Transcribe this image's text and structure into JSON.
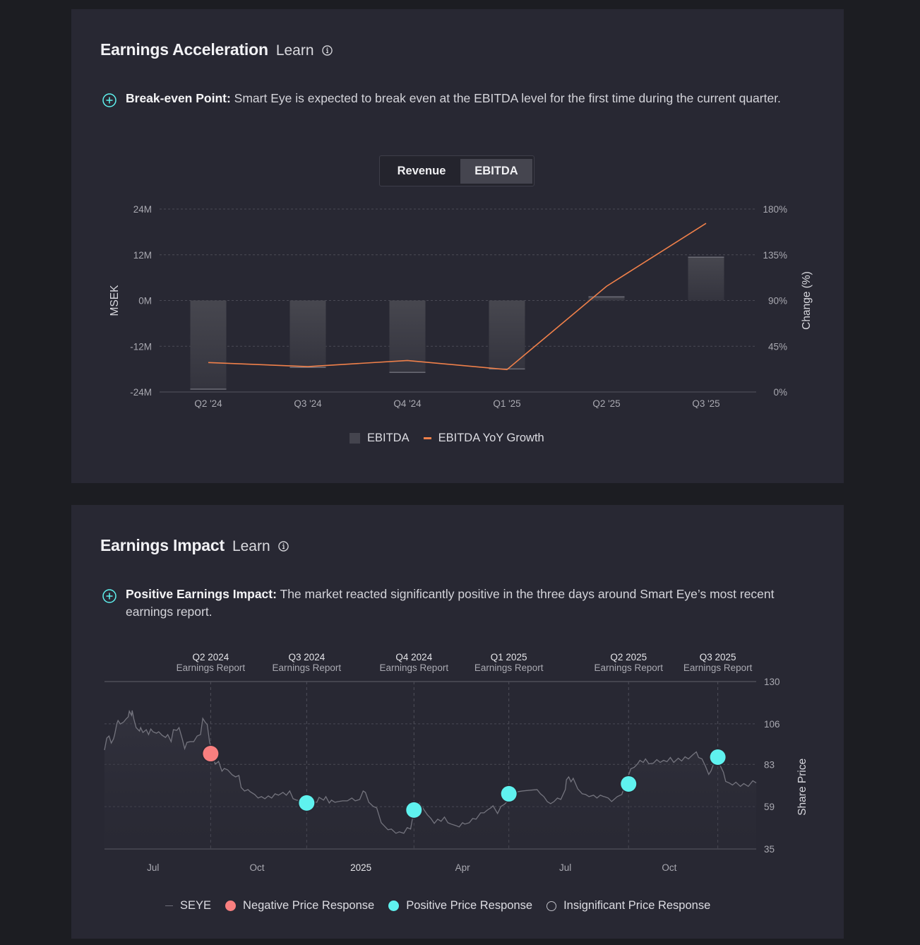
{
  "colors": {
    "page_bg": "#1c1d22",
    "panel_bg": "#282833",
    "accent_teal": "#5ff2ef",
    "ebitda_line": "#f0804a",
    "negative": "#f97f7f",
    "positive": "#5ff2ef",
    "bar_fill": "#44444e"
  },
  "acceleration": {
    "title": "Earnings Acceleration",
    "learn_label": "Learn",
    "insight_bold": "Break-even Point:",
    "insight_text": " Smart Eye is expected to break even at the EBITDA level for the first time during the current quarter.",
    "toggle": {
      "options": [
        "Revenue",
        "EBITDA"
      ],
      "selected": "EBITDA"
    },
    "legend": {
      "bar_label": "EBITDA",
      "line_label": "EBITDA YoY Growth"
    }
  },
  "impact": {
    "title": "Earnings Impact",
    "learn_label": "Learn",
    "insight_bold": "Positive Earnings Impact:",
    "insight_text": " The market reacted significantly positive in the three days around Smart Eye’s most recent earnings report.",
    "legend": {
      "series_label": "SEYE",
      "negative_label": "Negative Price Response",
      "positive_label": "Positive Price Response",
      "insignificant_label": "Insignificant Price Response"
    }
  },
  "chart_data": [
    {
      "type": "bar",
      "title": "",
      "categories": [
        "Q2 '24",
        "Q3 '24",
        "Q4 '24",
        "Q1 '25",
        "Q2 '25",
        "Q3 '25"
      ],
      "series": [
        {
          "name": "EBITDA",
          "axis": "left",
          "type": "bar",
          "values": [
            -23.3,
            -17.6,
            -18.9,
            -18.0,
            1.1,
            11.5
          ]
        },
        {
          "name": "EBITDA YoY Growth",
          "axis": "right",
          "type": "line",
          "values": [
            29,
            25,
            31,
            22,
            104,
            166
          ]
        }
      ],
      "ylabel": "MSEK",
      "ylim": [
        -24,
        24
      ],
      "yticks": [
        "-24M",
        "-12M",
        "0M",
        "12M",
        "24M"
      ],
      "ytick_values": [
        -24,
        -12,
        0,
        12,
        24
      ],
      "y2label": "Change (%)",
      "y2lim": [
        0,
        180
      ],
      "y2ticks": [
        "0%",
        "45%",
        "90%",
        "135%",
        "180%"
      ],
      "y2tick_values": [
        0,
        45,
        90,
        135,
        180
      ],
      "grid": true,
      "legend_position": "bottom-center"
    },
    {
      "type": "line",
      "title": "",
      "series_name": "SEYE",
      "ylabel": "Share Price",
      "ylim": [
        35,
        130
      ],
      "yticks": [
        "35",
        "59",
        "83",
        "106",
        "130"
      ],
      "ytick_values": [
        35,
        59,
        83,
        106,
        130
      ],
      "x_start": "2024-05-19",
      "x_end": "2025-12-17",
      "xlim_days": [
        0,
        577
      ],
      "xticks": [
        {
          "label": "Jul",
          "day": 43,
          "bold": false
        },
        {
          "label": "Oct",
          "day": 135,
          "bold": false
        },
        {
          "label": "2025",
          "day": 227,
          "bold": true
        },
        {
          "label": "Apr",
          "day": 317,
          "bold": false
        },
        {
          "label": "Jul",
          "day": 408,
          "bold": false
        },
        {
          "label": "Oct",
          "day": 500,
          "bold": false
        }
      ],
      "events": [
        {
          "title": "Q2 2024",
          "subtitle": "Earnings Report",
          "day": 94,
          "price": 89.1,
          "response": "negative"
        },
        {
          "title": "Q3 2024",
          "subtitle": "Earnings Report",
          "day": 179,
          "price": 61.1,
          "response": "positive"
        },
        {
          "title": "Q4 2024",
          "subtitle": "Earnings Report",
          "day": 274,
          "price": 57.1,
          "response": "positive"
        },
        {
          "title": "Q1 2025",
          "subtitle": "Earnings Report",
          "day": 358,
          "price": 66.3,
          "response": "positive"
        },
        {
          "title": "Q2 2025",
          "subtitle": "Earnings Report",
          "day": 464,
          "price": 71.9,
          "response": "positive"
        },
        {
          "title": "Q3 2025",
          "subtitle": "Earnings Report",
          "day": 543,
          "price": 87.1,
          "response": "positive"
        }
      ],
      "points": [
        [
          0,
          91.1
        ],
        [
          2,
          97.9
        ],
        [
          4,
          99.1
        ],
        [
          6,
          95.1
        ],
        [
          8,
          97.5
        ],
        [
          9,
          99.9
        ],
        [
          11,
          106.3
        ],
        [
          12,
          107.9
        ],
        [
          14,
          105.9
        ],
        [
          17,
          107.1
        ],
        [
          19,
          108.7
        ],
        [
          21,
          110.0
        ],
        [
          22,
          113.2
        ],
        [
          24,
          110.8
        ],
        [
          24.5,
          113.6
        ],
        [
          26,
          108.7
        ],
        [
          28,
          103.9
        ],
        [
          31,
          101.9
        ],
        [
          32,
          103.9
        ],
        [
          34,
          101.1
        ],
        [
          37,
          102.7
        ],
        [
          39,
          99.9
        ],
        [
          41,
          103.1
        ],
        [
          43,
          101.5
        ],
        [
          46,
          100.7
        ],
        [
          48,
          101.5
        ],
        [
          51,
          99.5
        ],
        [
          54,
          98.3
        ],
        [
          56,
          99.9
        ],
        [
          59,
          95.9
        ],
        [
          61,
          102.7
        ],
        [
          64,
          102.3
        ],
        [
          66,
          103.9
        ],
        [
          69,
          97.1
        ],
        [
          71,
          91.9
        ],
        [
          73,
          95.5
        ],
        [
          76,
          95.9
        ],
        [
          79,
          95.9
        ],
        [
          82,
          99.1
        ],
        [
          85,
          99.9
        ],
        [
          87,
          109.1
        ],
        [
          89,
          107.1
        ],
        [
          91,
          105.5
        ],
        [
          93,
          95.9
        ],
        [
          98,
          83.1
        ],
        [
          101,
          84.7
        ],
        [
          104,
          79.1
        ],
        [
          106,
          80.7
        ],
        [
          109,
          79.9
        ],
        [
          113,
          77.1
        ],
        [
          116,
          75.9
        ],
        [
          119,
          76.7
        ],
        [
          121,
          69.9
        ],
        [
          124,
          67.9
        ],
        [
          127,
          68.7
        ],
        [
          129,
          67.5
        ],
        [
          133,
          65.9
        ],
        [
          136,
          63.9
        ],
        [
          139,
          64.7
        ],
        [
          142,
          63.5
        ],
        [
          145,
          65.1
        ],
        [
          148,
          63.9
        ],
        [
          151,
          66.3
        ],
        [
          154,
          65.5
        ],
        [
          158,
          67.1
        ],
        [
          161,
          65.5
        ],
        [
          164,
          67.9
        ],
        [
          167,
          63.5
        ],
        [
          170,
          62.7
        ],
        [
          188,
          61.5
        ],
        [
          190,
          64.3
        ],
        [
          194,
          62.7
        ],
        [
          196,
          64.7
        ],
        [
          199,
          61.1
        ],
        [
          201,
          62.7
        ],
        [
          204,
          61.5
        ],
        [
          207,
          61.9
        ],
        [
          211,
          62.3
        ],
        [
          215,
          62.3
        ],
        [
          219,
          63.9
        ],
        [
          222,
          62.3
        ],
        [
          226,
          63.1
        ],
        [
          229,
          67.9
        ],
        [
          231,
          67.1
        ],
        [
          234,
          61.5
        ],
        [
          238,
          59.1
        ],
        [
          241,
          58.3
        ],
        [
          245,
          49.9
        ],
        [
          248,
          47.9
        ],
        [
          251,
          45.9
        ],
        [
          254,
          46.3
        ],
        [
          258,
          43.9
        ],
        [
          261,
          44.7
        ],
        [
          265,
          43.9
        ],
        [
          268,
          47.1
        ],
        [
          271,
          46.3
        ],
        [
          273,
          53.5
        ],
        [
          279,
          61.1
        ],
        [
          283,
          57.1
        ],
        [
          286,
          54.3
        ],
        [
          289,
          52.3
        ],
        [
          292,
          49.5
        ],
        [
          295,
          51.9
        ],
        [
          298,
          50.7
        ],
        [
          301,
          53.1
        ],
        [
          304,
          49.9
        ],
        [
          307,
          49.1
        ],
        [
          311,
          48.3
        ],
        [
          314,
          47.5
        ],
        [
          317,
          49.9
        ],
        [
          319,
          49.1
        ],
        [
          323,
          49.9
        ],
        [
          326,
          52.3
        ],
        [
          329,
          51.9
        ],
        [
          333,
          55.5
        ],
        [
          336,
          55.5
        ],
        [
          339,
          57.1
        ],
        [
          342,
          58.3
        ],
        [
          344,
          59.5
        ],
        [
          348,
          55.1
        ],
        [
          351,
          59.1
        ],
        [
          354,
          60.3
        ],
        [
          366,
          67.5
        ],
        [
          370,
          67.9
        ],
        [
          376,
          68.3
        ],
        [
          383,
          68.7
        ],
        [
          386,
          66.3
        ],
        [
          389,
          64.7
        ],
        [
          392,
          61.9
        ],
        [
          395,
          60.7
        ],
        [
          398,
          61.9
        ],
        [
          401,
          63.9
        ],
        [
          404,
          63.1
        ],
        [
          408,
          68.7
        ],
        [
          409,
          74.3
        ],
        [
          411,
          75.9
        ],
        [
          413,
          73.1
        ],
        [
          415,
          75.1
        ],
        [
          419,
          69.1
        ],
        [
          423,
          66.3
        ],
        [
          426,
          65.9
        ],
        [
          429,
          64.7
        ],
        [
          433,
          65.5
        ],
        [
          436,
          63.9
        ],
        [
          439,
          65.5
        ],
        [
          442,
          64.7
        ],
        [
          442.5,
          64.7
        ],
        [
          446,
          63.9
        ],
        [
          449,
          61.9
        ],
        [
          454,
          64.7
        ],
        [
          458,
          65.9
        ],
        [
          466,
          80.5
        ],
        [
          469,
          81.3
        ],
        [
          472,
          83.3
        ],
        [
          474,
          85.3
        ],
        [
          477,
          84.1
        ],
        [
          479,
          86.1
        ],
        [
          482,
          83.3
        ],
        [
          486,
          83.7
        ],
        [
          489,
          85.7
        ],
        [
          492,
          84.1
        ],
        [
          495,
          85.3
        ],
        [
          498,
          84.5
        ],
        [
          501,
          86.9
        ],
        [
          504,
          84.1
        ],
        [
          508,
          86.5
        ],
        [
          511,
          84.9
        ],
        [
          514,
          87.3
        ],
        [
          517,
          86.1
        ],
        [
          521,
          88.5
        ],
        [
          524,
          90.1
        ],
        [
          526,
          86.9
        ],
        [
          529,
          86.1
        ],
        [
          532,
          82.1
        ],
        [
          535,
          77.3
        ],
        [
          537,
          79.3
        ],
        [
          540,
          84.5
        ],
        [
          545,
          82.5
        ],
        [
          548,
          78.5
        ],
        [
          550,
          73.3
        ],
        [
          553,
          72.5
        ],
        [
          556,
          71.3
        ],
        [
          559,
          72.9
        ],
        [
          563,
          70.5
        ],
        [
          566,
          72.1
        ],
        [
          570,
          70.5
        ],
        [
          574,
          73.7
        ],
        [
          577,
          72.5
        ]
      ],
      "legend_position": "bottom-center",
      "grid": true
    }
  ]
}
